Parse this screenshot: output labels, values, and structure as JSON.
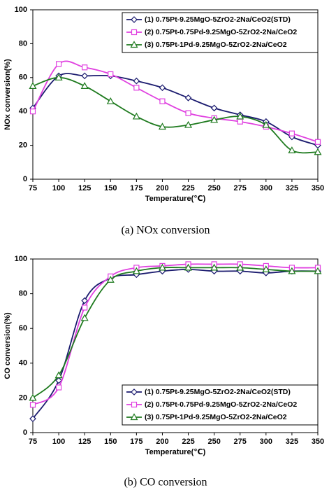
{
  "chart_data": [
    {
      "type": "line",
      "caption": "(a)  NOx  conversion",
      "xlabel": "Temperature(℃)",
      "ylabel": "NOx conversion(%)",
      "x": [
        75,
        100,
        125,
        150,
        175,
        200,
        225,
        250,
        275,
        300,
        325,
        350
      ],
      "xlim": [
        75,
        350
      ],
      "xticks": [
        75,
        100,
        125,
        150,
        175,
        200,
        225,
        250,
        275,
        300,
        325,
        350
      ],
      "ylim": [
        0,
        100
      ],
      "yticks": [
        0,
        20,
        40,
        60,
        80,
        100
      ],
      "legend": "upper right",
      "series": [
        {
          "name": "(1) 0.75Pt-9.25MgO-5ZrO2-2Na/CeO2(STD)",
          "color": "#1a1a6e",
          "marker": "diamond",
          "values": [
            42,
            61,
            61,
            61,
            58,
            54,
            48,
            42,
            38,
            34,
            25,
            20
          ]
        },
        {
          "name": "(2) 0.75Pt-0.75Pd-9.25MgO-5ZrO2-2Na/CeO2",
          "color": "#e040e0",
          "marker": "square",
          "values": [
            40,
            68,
            66,
            62,
            54,
            46,
            39,
            36,
            34,
            31,
            27,
            22
          ]
        },
        {
          "name": "(3) 0.75Pt-1Pd-9.25MgO-5ZrO2-2Na/CeO2",
          "color": "#1e7a1e",
          "marker": "triangle",
          "values": [
            55,
            60,
            55,
            46,
            37,
            31,
            32,
            35,
            37,
            32,
            17,
            16
          ]
        }
      ]
    },
    {
      "type": "line",
      "caption": "(b)  CO  conversion",
      "xlabel": "Temperature(℃)",
      "ylabel": "CO conversion(%)",
      "x": [
        75,
        100,
        125,
        150,
        175,
        200,
        225,
        250,
        275,
        300,
        325,
        350
      ],
      "xlim": [
        75,
        350
      ],
      "xticks": [
        75,
        100,
        125,
        150,
        175,
        200,
        225,
        250,
        275,
        300,
        325,
        350
      ],
      "ylim": [
        0,
        100
      ],
      "yticks": [
        0,
        20,
        40,
        60,
        80,
        100
      ],
      "legend": "lower right",
      "series": [
        {
          "name": "(1) 0.75Pt-9.25MgO-5ZrO2-2Na/CeO2(STD)",
          "color": "#1a1a6e",
          "marker": "diamond",
          "values": [
            8,
            30,
            76,
            89,
            91,
            93,
            94,
            93,
            93,
            92,
            93,
            93
          ]
        },
        {
          "name": "(2) 0.75Pt-0.75Pd-9.25MgO-5ZrO2-2Na/CeO2",
          "color": "#e040e0",
          "marker": "square",
          "values": [
            16,
            26,
            72,
            90,
            95,
            96,
            97,
            97,
            97,
            96,
            95,
            95
          ]
        },
        {
          "name": "(3) 0.75Pt-1Pd-9.25MgO-5ZrO2-2Na/CeO2",
          "color": "#1e7a1e",
          "marker": "triangle",
          "values": [
            20,
            33,
            66,
            88,
            93,
            95,
            95,
            95,
            95,
            94,
            93,
            93
          ]
        }
      ]
    }
  ]
}
